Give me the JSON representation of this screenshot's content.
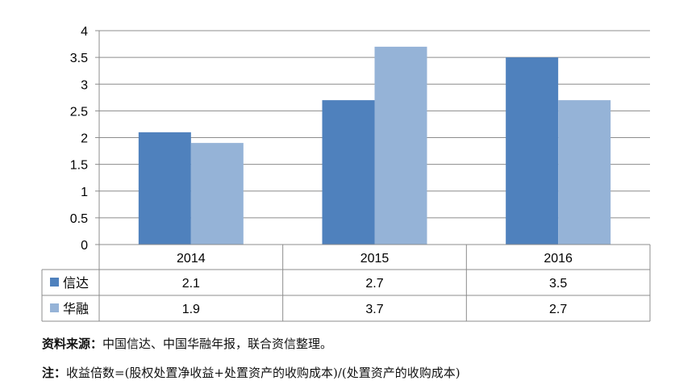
{
  "chart_data": {
    "type": "bar",
    "categories": [
      "2014",
      "2015",
      "2016"
    ],
    "series": [
      {
        "name": "信达",
        "values": [
          2.1,
          2.7,
          3.5
        ],
        "color": "#4f81bd"
      },
      {
        "name": "华融",
        "values": [
          1.9,
          3.7,
          2.7
        ],
        "color": "#95b3d7"
      }
    ],
    "ylim": [
      0,
      4
    ],
    "yticks": [
      "0",
      "0.5",
      "1",
      "1.5",
      "2",
      "2.5",
      "3",
      "3.5",
      "4"
    ],
    "ytick_values": [
      0,
      0.5,
      1,
      1.5,
      2,
      2.5,
      3,
      3.5,
      4
    ],
    "table_rows": [
      {
        "label": "信达",
        "values": [
          "2.1",
          "2.7",
          "3.5"
        ]
      },
      {
        "label": "华融",
        "values": [
          "1.9",
          "3.7",
          "2.7"
        ]
      }
    ],
    "grid": true
  },
  "notes": {
    "source_label": "资料来源：",
    "source_text": "中国信达、中国华融年报，联合资信整理。",
    "formula_label": "注：",
    "formula_text": "收益倍数=(股权处置净收益+处置资产的收购成本)/(处置资产的收购成本)"
  }
}
